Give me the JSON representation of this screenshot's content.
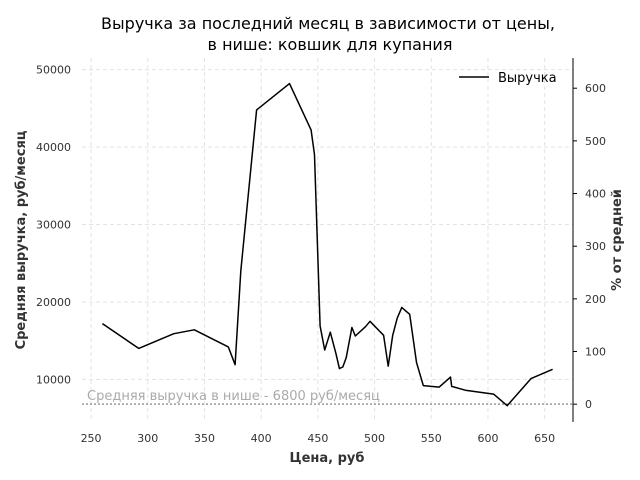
{
  "chart_data": {
    "type": "line",
    "title_line1": "Выручка за последний месяц в зависимости от цены,",
    "title_line2": "в нише: ковшик для купания",
    "xlabel": "Цена, руб",
    "ylabel": "Средняя выручка, руб/месяц",
    "y2label": "% от средней",
    "xlim": [
      242,
      675
    ],
    "ylim": [
      4500,
      51500
    ],
    "x_ticks": [
      250,
      300,
      350,
      400,
      450,
      500,
      550,
      600,
      650
    ],
    "y_ticks": [
      10000,
      20000,
      30000,
      40000,
      50000
    ],
    "y2_ticks": [
      0,
      100,
      200,
      300,
      400,
      500,
      600
    ],
    "grid": true,
    "legend_position": "top-right",
    "series": [
      {
        "name": "Выручка",
        "color": "#000000",
        "x": [
          260,
          292,
          323,
          341,
          371,
          377,
          382,
          396,
          425,
          444,
          447,
          452,
          456,
          461,
          466,
          469,
          472,
          475,
          480,
          483,
          492,
          496,
          508,
          512,
          516,
          520,
          524,
          527,
          531,
          537,
          543,
          557,
          560,
          567,
          568,
          580,
          605,
          617,
          638,
          657
        ],
        "y": [
          17200,
          14000,
          15900,
          16400,
          14200,
          11900,
          24000,
          44800,
          48200,
          42200,
          39000,
          16900,
          13800,
          16100,
          13300,
          11400,
          11600,
          12800,
          16700,
          15600,
          16800,
          17500,
          15700,
          11700,
          15700,
          17900,
          19300,
          18900,
          18400,
          12200,
          9200,
          9000,
          9400,
          10300,
          9100,
          8600,
          8100,
          6600,
          10100,
          11300
        ]
      }
    ],
    "reference_value": 6800,
    "reference_label": "Средняя выручка в нише - 6800 руб/месяц",
    "reference_color": "#999999"
  }
}
